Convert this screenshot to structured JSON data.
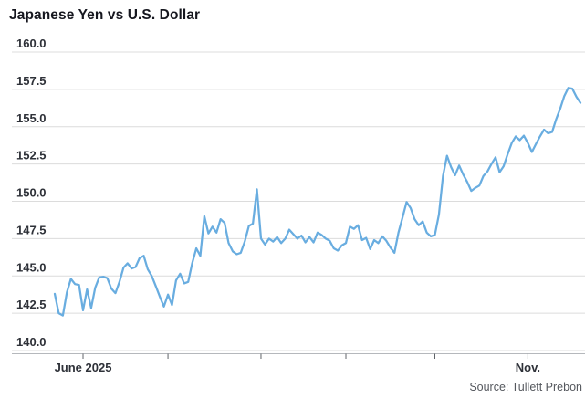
{
  "title": "Japanese Yen vs U.S. Dollar",
  "source": "Source: Tullett Prebon",
  "colors": {
    "background": "#ffffff",
    "line": "#69ade0",
    "grid": "#dcdcdc",
    "axis_line": "#b5b8bc",
    "tick_mark": "#5f6368",
    "axis_label": "#2e3138",
    "title": "#16171f",
    "source": "#55585e"
  },
  "chart_data": {
    "type": "line",
    "title": "Japanese Yen vs U.S. Dollar",
    "ylabel": "",
    "xlabel": "",
    "ylim": [
      140.0,
      160.0
    ],
    "grid": "horizontal",
    "legend": "none",
    "y_tick_labels": [
      "160.0",
      "157.5",
      "155.0",
      "152.5",
      "150.0",
      "147.5",
      "145.0",
      "142.5",
      "140.0"
    ],
    "x_ticks": [
      {
        "pos": 7,
        "label": "June 2025"
      },
      {
        "pos": 28,
        "label": ""
      },
      {
        "pos": 51,
        "label": ""
      },
      {
        "pos": 72,
        "label": ""
      },
      {
        "pos": 94,
        "label": ""
      },
      {
        "pos": 117,
        "label": "Nov."
      }
    ],
    "values": [
      143.8,
      142.5,
      142.35,
      143.9,
      144.8,
      144.45,
      144.4,
      142.7,
      144.1,
      142.85,
      144.2,
      144.9,
      144.95,
      144.85,
      144.15,
      143.85,
      144.6,
      145.55,
      145.85,
      145.5,
      145.6,
      146.2,
      146.35,
      145.45,
      145.0,
      144.3,
      143.6,
      142.95,
      143.75,
      143.05,
      144.7,
      145.15,
      144.5,
      144.6,
      145.85,
      146.85,
      146.35,
      149.0,
      147.85,
      148.3,
      147.9,
      148.8,
      148.55,
      147.2,
      146.65,
      146.45,
      146.55,
      147.3,
      148.35,
      148.5,
      150.8,
      147.5,
      147.1,
      147.5,
      147.3,
      147.6,
      147.2,
      147.5,
      148.1,
      147.8,
      147.5,
      147.7,
      147.25,
      147.6,
      147.25,
      147.9,
      147.75,
      147.5,
      147.35,
      146.85,
      146.7,
      147.05,
      147.2,
      148.3,
      148.15,
      148.4,
      147.4,
      147.55,
      146.8,
      147.4,
      147.2,
      147.65,
      147.35,
      146.9,
      146.55,
      147.9,
      148.9,
      149.95,
      149.55,
      148.8,
      148.4,
      148.65,
      147.9,
      147.65,
      147.75,
      149.1,
      151.7,
      153.05,
      152.3,
      151.75,
      152.4,
      151.8,
      151.3,
      150.7,
      150.9,
      151.05,
      151.7,
      152.0,
      152.5,
      152.95,
      151.95,
      152.35,
      153.15,
      153.9,
      154.35,
      154.1,
      154.4,
      153.9,
      153.3,
      153.85,
      154.35,
      154.8,
      154.55,
      154.65,
      155.5,
      156.2,
      157.05,
      157.6,
      157.55,
      157.0,
      156.6
    ]
  }
}
